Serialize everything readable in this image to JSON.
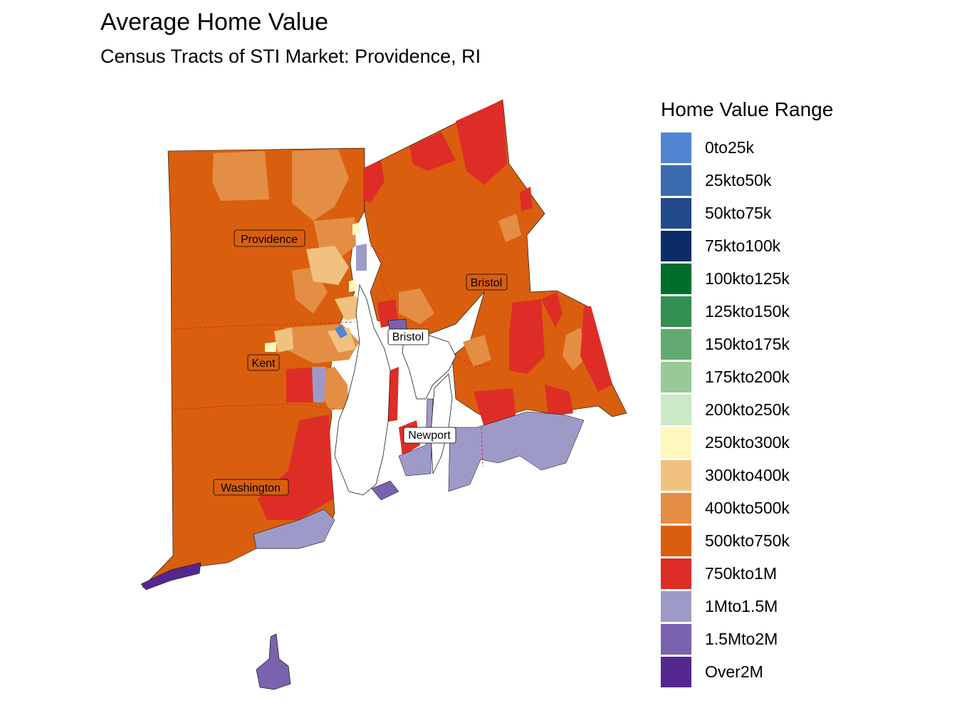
{
  "title": "Average Home Value",
  "subtitle": "Census Tracts of STI Market: Providence, RI",
  "legend": {
    "title": "Home Value Range",
    "items": [
      {
        "label": "0to25k",
        "color": "#5285d1"
      },
      {
        "label": "25kto50k",
        "color": "#3b6aaf"
      },
      {
        "label": "50kto75k",
        "color": "#224a88"
      },
      {
        "label": "75kto100k",
        "color": "#0b2c69"
      },
      {
        "label": "100kto125k",
        "color": "#006d2c"
      },
      {
        "label": "125kto150k",
        "color": "#31904f"
      },
      {
        "label": "150kto175k",
        "color": "#63aa72"
      },
      {
        "label": "175kto200k",
        "color": "#98ca98"
      },
      {
        "label": "200kto250k",
        "color": "#cbe9c4"
      },
      {
        "label": "250kto300k",
        "color": "#fff7bc"
      },
      {
        "label": "300kto400k",
        "color": "#f1c27f"
      },
      {
        "label": "400kto500k",
        "color": "#e48e45"
      },
      {
        "label": "500kto750k",
        "color": "#d95f0e"
      },
      {
        "label": "750kto1M",
        "color": "#de2d26"
      },
      {
        "label": "1Mto1.5M",
        "color": "#9e9ac8"
      },
      {
        "label": "1.5Mto2M",
        "color": "#7a62ae"
      },
      {
        "label": "Over2M",
        "color": "#54278f"
      }
    ]
  },
  "counties": [
    {
      "name": "Providence"
    },
    {
      "name": "Bristol"
    },
    {
      "name": "Bristol"
    },
    {
      "name": "Kent"
    },
    {
      "name": "Newport"
    },
    {
      "name": "Washington"
    }
  ]
}
